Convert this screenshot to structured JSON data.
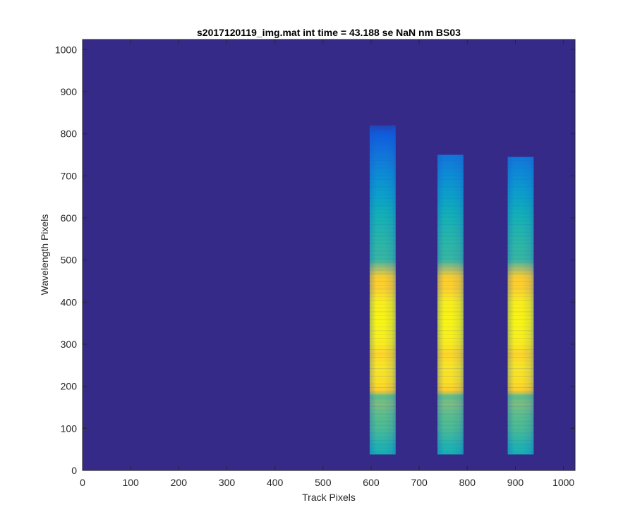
{
  "chart_data": {
    "type": "heatmap",
    "title": "s2017120119_img.mat int time = 43.188 se  NaN nm BS03",
    "xlabel": "Track Pixels",
    "ylabel": "Wavelength Pixels",
    "xlim": [
      0,
      1024
    ],
    "ylim": [
      0,
      1024
    ],
    "xticks": [
      0,
      100,
      200,
      300,
      400,
      500,
      600,
      700,
      800,
      900,
      1000
    ],
    "yticks": [
      0,
      100,
      200,
      300,
      400,
      500,
      600,
      700,
      800,
      900,
      1000
    ],
    "grid": false,
    "colormap": "parula",
    "background_color": "#352a87",
    "bands": [
      {
        "x_start": 597,
        "x_end": 651,
        "y_bottom": 38,
        "y_top": 820
      },
      {
        "x_start": 738,
        "x_end": 792,
        "y_bottom": 38,
        "y_top": 750
      },
      {
        "x_start": 884,
        "x_end": 938,
        "y_bottom": 38,
        "y_top": 745
      }
    ],
    "intensity_profile": [
      {
        "y": 38,
        "level": 0.4
      },
      {
        "y": 60,
        "level": 0.42
      },
      {
        "y": 100,
        "level": 0.48
      },
      {
        "y": 130,
        "level": 0.5
      },
      {
        "y": 160,
        "level": 0.55
      },
      {
        "y": 175,
        "level": 0.5
      },
      {
        "y": 190,
        "level": 0.8
      },
      {
        "y": 210,
        "level": 0.87
      },
      {
        "y": 250,
        "level": 0.9
      },
      {
        "y": 275,
        "level": 0.82
      },
      {
        "y": 300,
        "level": 0.93
      },
      {
        "y": 350,
        "level": 0.97
      },
      {
        "y": 400,
        "level": 0.94
      },
      {
        "y": 435,
        "level": 0.8
      },
      {
        "y": 460,
        "level": 0.8
      },
      {
        "y": 480,
        "level": 0.6
      },
      {
        "y": 500,
        "level": 0.45
      },
      {
        "y": 550,
        "level": 0.43
      },
      {
        "y": 600,
        "level": 0.4
      },
      {
        "y": 650,
        "level": 0.33
      },
      {
        "y": 700,
        "level": 0.25
      },
      {
        "y": 750,
        "level": 0.18
      },
      {
        "y": 800,
        "level": 0.1
      },
      {
        "y": 820,
        "level": 0.05
      }
    ]
  }
}
